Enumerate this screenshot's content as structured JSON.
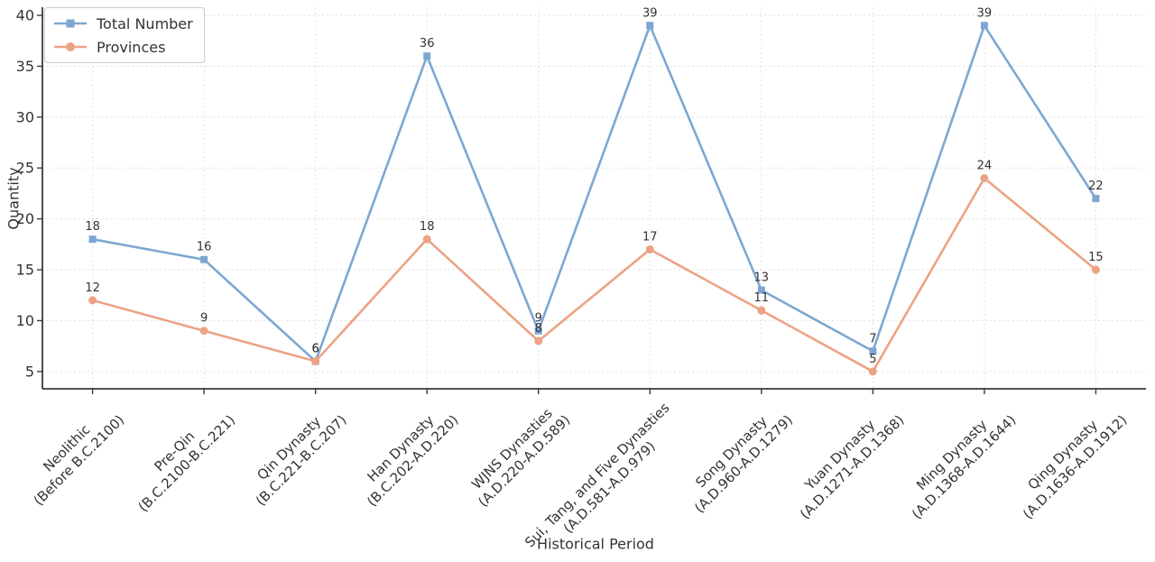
{
  "chart_data": {
    "type": "line",
    "title": "",
    "xlabel": "Historical Period",
    "ylabel": "Quantity",
    "ylim": [
      3.3,
      40.8
    ],
    "yticks": [
      5,
      10,
      15,
      20,
      25,
      30,
      35,
      40
    ],
    "grid": true,
    "legend_position": "upper-left",
    "categories": [
      {
        "name": "Neolithic",
        "period": "(Before B.C.2100)"
      },
      {
        "name": "Pre-Qin",
        "period": "(B.C.2100-B.C.221)"
      },
      {
        "name": "Qin Dynasty",
        "period": "(B.C.221-B.C.207)"
      },
      {
        "name": "Han Dynasty",
        "period": "(B.C.202-A.D.220)"
      },
      {
        "name": "WJNS Dynasties",
        "period": "(A.D.220-A.D.589)"
      },
      {
        "name": "Sui, Tang, and Five Dynasties",
        "period": "(A.D.581-A.D.979)"
      },
      {
        "name": "Song Dynasty",
        "period": "(A.D.960-A.D.1279)"
      },
      {
        "name": "Yuan Dynasty",
        "period": "(A.D.1271-A.D.1368)"
      },
      {
        "name": "Ming Dynasty",
        "period": "(A.D.1368-A.D.1644)"
      },
      {
        "name": "Qing Dynasty",
        "period": "(A.D.1636-A.D.1912)"
      }
    ],
    "series": [
      {
        "name": "Total Number",
        "marker": "square",
        "color": "#7da7d1",
        "values": [
          18,
          16,
          6,
          36,
          9,
          39,
          13,
          7,
          39,
          22
        ]
      },
      {
        "name": "Provinces",
        "marker": "circle",
        "color": "#eca383",
        "values": [
          12,
          9,
          6,
          18,
          8,
          17,
          11,
          5,
          24,
          15
        ]
      }
    ],
    "colors": {
      "grid": "#e0e0e0",
      "spine": "#3a3a3a",
      "tick_text": "#333333",
      "annotation_text": "#333333"
    }
  }
}
